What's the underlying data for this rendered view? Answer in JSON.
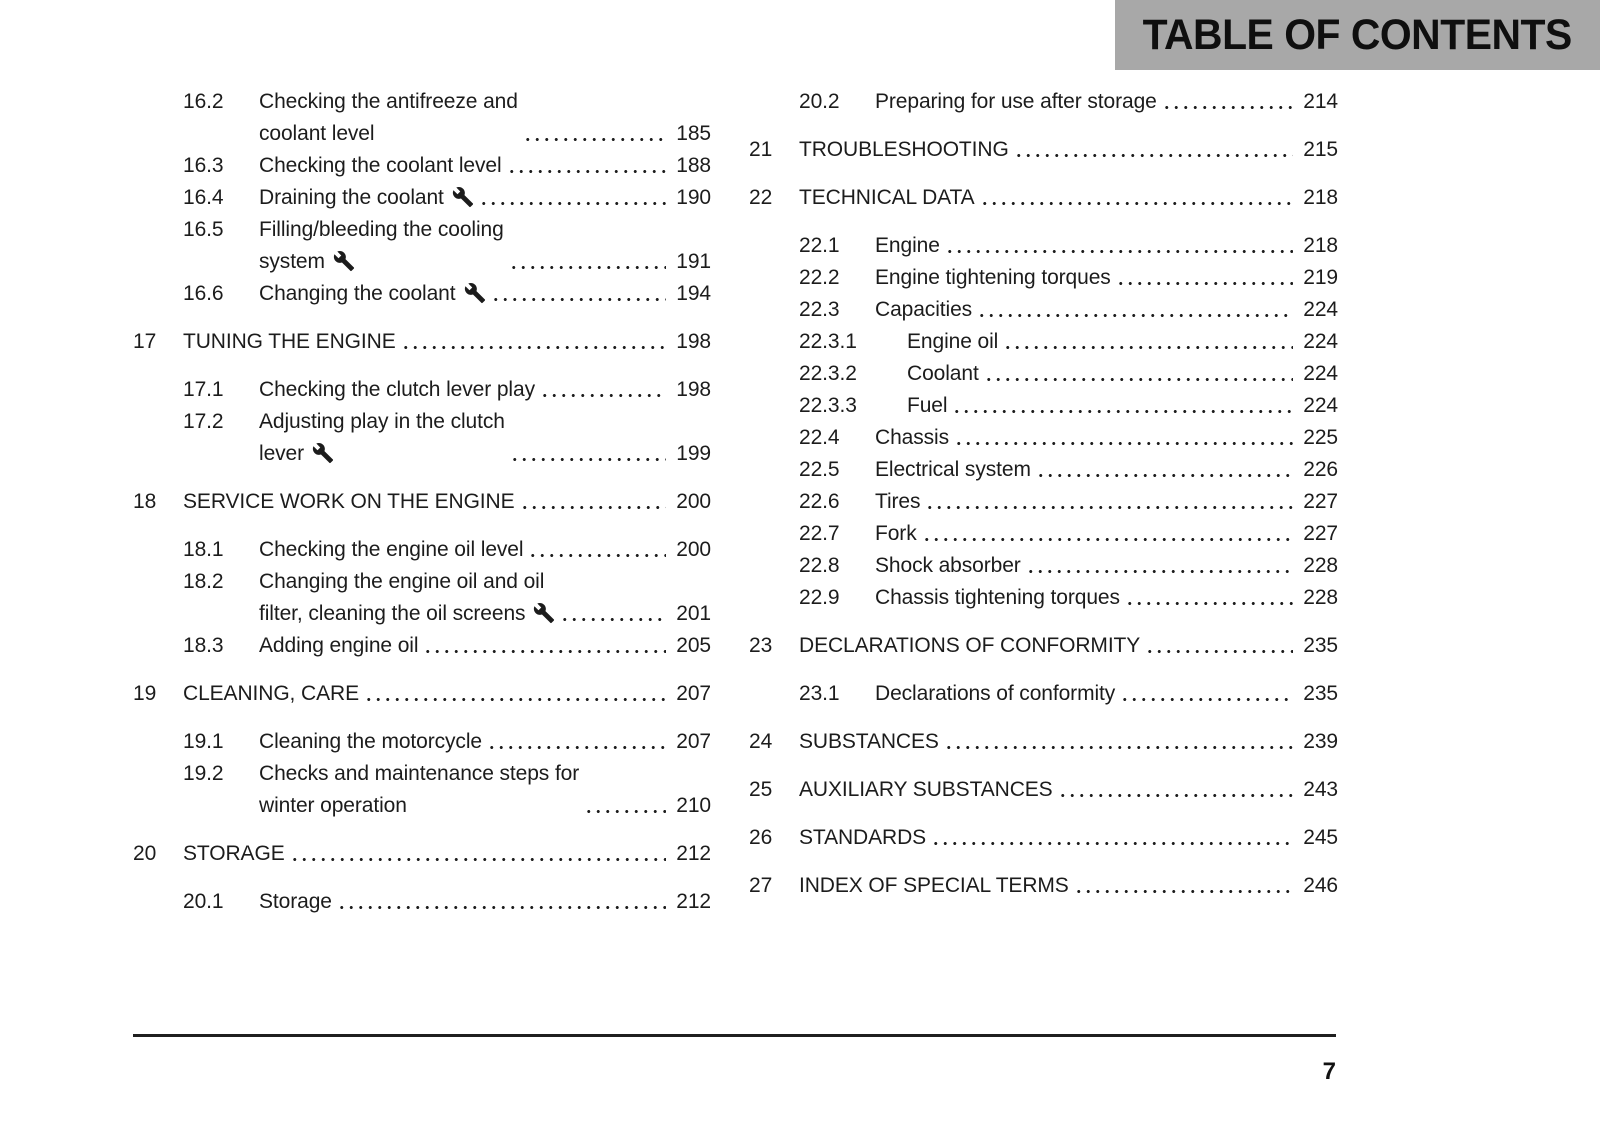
{
  "colors": {
    "header_bg": "#a8a8a8",
    "text": "#1c1c1c",
    "rule": "#1f1f1f"
  },
  "header": {
    "title": "TABLE OF CONTENTS"
  },
  "footer": {
    "page_number": "7"
  },
  "toc": {
    "columns": [
      {
        "entries": [
          {
            "num": "16.2",
            "level": 1,
            "title": "Checking the antifreeze and coolant level",
            "title_lines": [
              "Checking the antifreeze and",
              "coolant level"
            ],
            "page": "185"
          },
          {
            "num": "16.3",
            "level": 1,
            "title": "Checking the coolant level",
            "page": "188"
          },
          {
            "num": "16.4",
            "level": 1,
            "title": "Draining the coolant",
            "icon": "wrench-icon",
            "page": "190"
          },
          {
            "num": "16.5",
            "level": 1,
            "title": "Filling/bleeding the cooling system",
            "title_lines": [
              "Filling/bleeding the cooling",
              "system"
            ],
            "icon": "wrench-icon",
            "page": "191"
          },
          {
            "num": "16.6",
            "level": 1,
            "title": "Changing the coolant",
            "icon": "wrench-icon",
            "page": "194"
          },
          {
            "num": "17",
            "level": 0,
            "title": "TUNING THE ENGINE",
            "page": "198"
          },
          {
            "num": "17.1",
            "level": 1,
            "title": "Checking the clutch lever play",
            "page": "198"
          },
          {
            "num": "17.2",
            "level": 1,
            "title": "Adjusting play in the clutch lever",
            "title_lines": [
              "Adjusting play in the clutch",
              "lever"
            ],
            "icon": "wrench-icon",
            "page": "199"
          },
          {
            "num": "18",
            "level": 0,
            "title": "SERVICE WORK ON THE ENGINE",
            "page": "200"
          },
          {
            "num": "18.1",
            "level": 1,
            "title": "Checking the engine oil level",
            "page": "200"
          },
          {
            "num": "18.2",
            "level": 1,
            "title": "Changing the engine oil and oil filter, cleaning the oil screens",
            "title_lines": [
              "Changing the engine oil and oil",
              "filter, cleaning the oil screens"
            ],
            "icon": "wrench-icon",
            "page": "201"
          },
          {
            "num": "18.3",
            "level": 1,
            "title": "Adding engine oil",
            "page": "205"
          },
          {
            "num": "19",
            "level": 0,
            "title": "CLEANING, CARE",
            "page": "207"
          },
          {
            "num": "19.1",
            "level": 1,
            "title": "Cleaning the motorcycle",
            "page": "207"
          },
          {
            "num": "19.2",
            "level": 1,
            "title": "Checks and maintenance steps for winter operation",
            "title_lines": [
              "Checks and maintenance steps for",
              "winter operation"
            ],
            "page": "210"
          },
          {
            "num": "20",
            "level": 0,
            "title": "STORAGE",
            "page": "212"
          },
          {
            "num": "20.1",
            "level": 1,
            "title": "Storage",
            "page": "212"
          }
        ]
      },
      {
        "entries": [
          {
            "num": "20.2",
            "level": 1,
            "title": "Preparing for use after storage",
            "page": "214"
          },
          {
            "num": "21",
            "level": 0,
            "title": "TROUBLESHOOTING",
            "page": "215"
          },
          {
            "num": "22",
            "level": 0,
            "title": "TECHNICAL DATA",
            "page": "218"
          },
          {
            "num": "22.1",
            "level": 1,
            "title": "Engine",
            "page": "218"
          },
          {
            "num": "22.2",
            "level": 1,
            "title": "Engine tightening torques",
            "page": "219"
          },
          {
            "num": "22.3",
            "level": 1,
            "title": "Capacities",
            "page": "224"
          },
          {
            "num": "22.3.1",
            "level": 2,
            "title": "Engine oil",
            "page": "224"
          },
          {
            "num": "22.3.2",
            "level": 2,
            "title": "Coolant",
            "page": "224"
          },
          {
            "num": "22.3.3",
            "level": 2,
            "title": "Fuel",
            "page": "224"
          },
          {
            "num": "22.4",
            "level": 1,
            "title": "Chassis",
            "page": "225"
          },
          {
            "num": "22.5",
            "level": 1,
            "title": "Electrical system",
            "page": "226"
          },
          {
            "num": "22.6",
            "level": 1,
            "title": "Tires",
            "page": "227"
          },
          {
            "num": "22.7",
            "level": 1,
            "title": "Fork",
            "page": "227"
          },
          {
            "num": "22.8",
            "level": 1,
            "title": "Shock absorber",
            "page": "228"
          },
          {
            "num": "22.9",
            "level": 1,
            "title": "Chassis tightening torques",
            "page": "228"
          },
          {
            "num": "23",
            "level": 0,
            "title": "DECLARATIONS OF CONFORMITY",
            "page": "235"
          },
          {
            "num": "23.1",
            "level": 1,
            "title": "Declarations of conformity",
            "page": "235"
          },
          {
            "num": "24",
            "level": 0,
            "title": "SUBSTANCES",
            "page": "239"
          },
          {
            "num": "25",
            "level": 0,
            "title": "AUXILIARY SUBSTANCES",
            "page": "243"
          },
          {
            "num": "26",
            "level": 0,
            "title": "STANDARDS",
            "page": "245"
          },
          {
            "num": "27",
            "level": 0,
            "title": "INDEX OF SPECIAL TERMS",
            "page": "246"
          }
        ]
      }
    ]
  }
}
